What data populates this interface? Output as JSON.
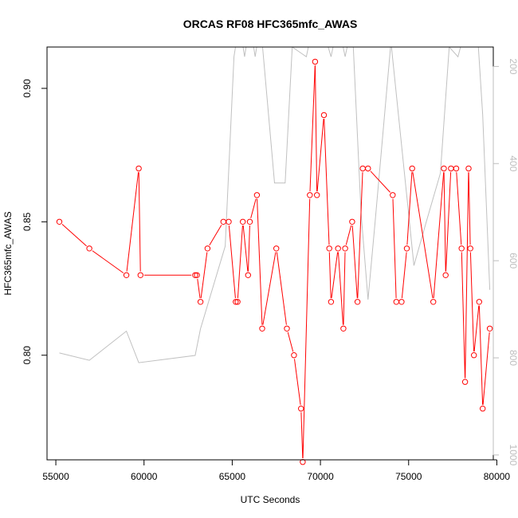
{
  "chart_data": {
    "type": "line",
    "title": "ORCAS RF08 HFC365mfc_AWAS",
    "xlabel": "UTC Seconds",
    "ylabel": "HFC365mfc_AWAS",
    "xlim": [
      54500,
      79800
    ],
    "ylim": [
      0.7608,
      0.9155
    ],
    "x_ticks": [
      55000,
      60000,
      65000,
      70000,
      75000,
      80000
    ],
    "y_ticks": [
      0.8,
      0.85,
      0.9
    ],
    "x_tick_labels": [
      "55000",
      "60000",
      "65000",
      "70000",
      "75000",
      "80000"
    ],
    "y_tick_labels": [
      "0.80",
      "0.85",
      "0.90"
    ],
    "y2_ticks": [
      200,
      400,
      600,
      800,
      1000
    ],
    "y2_tick_labels": [
      "200",
      "400",
      "600",
      "800",
      "1000"
    ],
    "y2lim": [
      1010,
      160
    ],
    "grid": false,
    "series": [
      {
        "role": "primary",
        "color": "#ff0000",
        "x": [
          55200,
          56900,
          59000,
          59700,
          59800,
          62900,
          63000,
          63200,
          63600,
          64500,
          64800,
          65200,
          65300,
          65600,
          65900,
          66000,
          66400,
          66700,
          67500,
          68100,
          68500,
          68900,
          69000,
          69400,
          69700,
          69800,
          70200,
          70500,
          70600,
          71000,
          71300,
          71400,
          71800,
          72100,
          72400,
          72700,
          74100,
          74300,
          74600,
          74900,
          75200,
          76400,
          77000,
          77100,
          77400,
          77700,
          78000,
          78200,
          78400,
          78500,
          78700,
          79000,
          79200,
          79600
        ],
        "y": [
          0.85,
          0.84,
          0.83,
          0.87,
          0.83,
          0.83,
          0.83,
          0.82,
          0.84,
          0.85,
          0.85,
          0.82,
          0.82,
          0.85,
          0.83,
          0.85,
          0.86,
          0.81,
          0.84,
          0.81,
          0.8,
          0.78,
          0.76,
          0.86,
          0.91,
          0.86,
          0.89,
          0.84,
          0.82,
          0.84,
          0.81,
          0.84,
          0.85,
          0.82,
          0.87,
          0.87,
          0.86,
          0.82,
          0.82,
          0.84,
          0.87,
          0.82,
          0.87,
          0.83,
          0.87,
          0.87,
          0.84,
          0.79,
          0.87,
          0.84,
          0.8,
          0.82,
          0.78,
          0.81
        ]
      },
      {
        "role": "secondary-axis",
        "color": "#c0c0c0",
        "x": [
          55200,
          56900,
          59000,
          59700,
          62900,
          63200,
          64600,
          65100,
          65400,
          65700,
          66000,
          66300,
          66600,
          67400,
          68000,
          68400,
          69200,
          69600,
          70200,
          70600,
          71000,
          71400,
          71800,
          72300,
          72700,
          73100,
          74000,
          75300,
          76000,
          76800,
          77300,
          77800,
          78300,
          78900,
          79200,
          79600
        ],
        "y2": [
          790,
          805,
          745,
          810,
          795,
          740,
          570,
          180,
          110,
          180,
          110,
          180,
          110,
          440,
          440,
          160,
          180,
          110,
          130,
          180,
          110,
          180,
          110,
          500,
          680,
          520,
          150,
          610,
          520,
          420,
          160,
          180,
          110,
          130,
          300,
          660
        ]
      }
    ]
  }
}
